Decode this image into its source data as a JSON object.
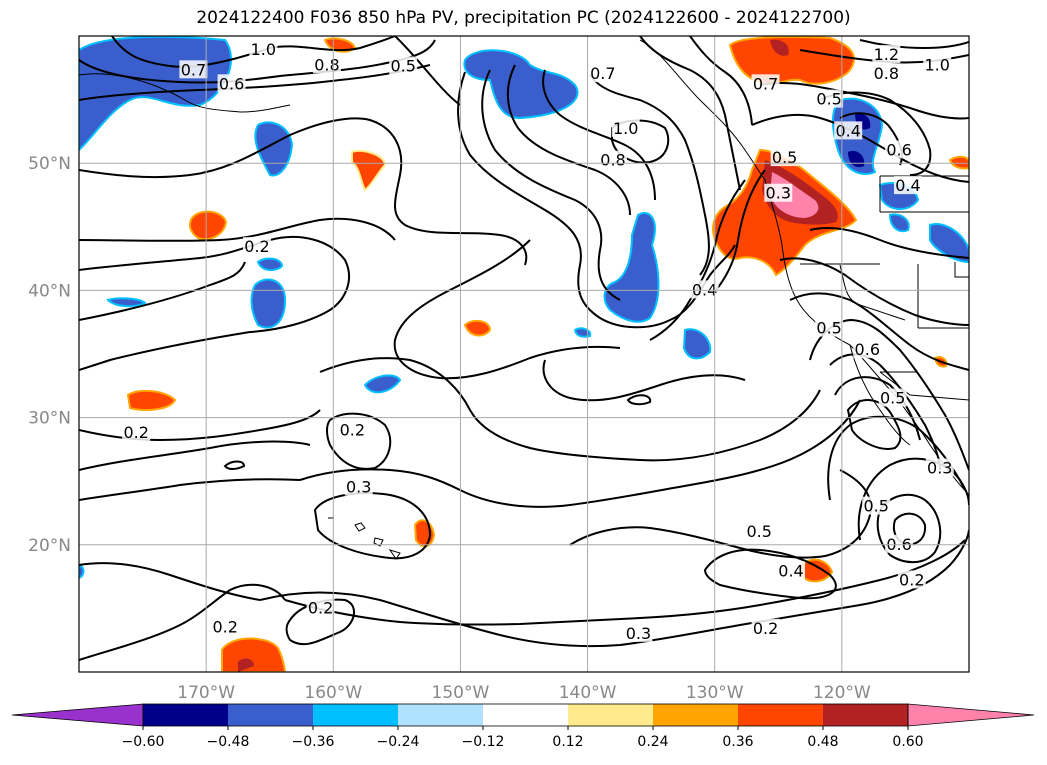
{
  "title": "2024122400 F036 850 hPa PV, precipitation PC (2024122600 - 2024122700)",
  "map": {
    "lon_range": [
      -180,
      -110
    ],
    "lat_range": [
      10,
      60
    ],
    "lon_ticks": [
      {
        "value": -170,
        "label": "170°W"
      },
      {
        "value": -160,
        "label": "160°W"
      },
      {
        "value": -150,
        "label": "150°W"
      },
      {
        "value": -140,
        "label": "140°W"
      },
      {
        "value": -130,
        "label": "130°W"
      },
      {
        "value": -120,
        "label": "120°W"
      }
    ],
    "lat_ticks": [
      {
        "value": 20,
        "label": "20°N"
      },
      {
        "value": 30,
        "label": "30°N"
      },
      {
        "value": 40,
        "label": "40°N"
      },
      {
        "value": 50,
        "label": "50°N"
      }
    ],
    "grid": true
  },
  "contour_labels": [
    {
      "text": "1.0",
      "lon": -165.5,
      "lat": 58.9
    },
    {
      "text": "0.8",
      "lon": -160.5,
      "lat": 57.7
    },
    {
      "text": "0.7",
      "lon": -171.0,
      "lat": 57.3
    },
    {
      "text": "0.6",
      "lon": -168.0,
      "lat": 56.2
    },
    {
      "text": "0.5",
      "lon": -154.5,
      "lat": 57.6
    },
    {
      "text": "0.2",
      "lon": -166.0,
      "lat": 43.4
    },
    {
      "text": "0.2",
      "lon": -175.5,
      "lat": 28.8
    },
    {
      "text": "0.2",
      "lon": -158.5,
      "lat": 29.0
    },
    {
      "text": "0.3",
      "lon": -158.0,
      "lat": 24.5
    },
    {
      "text": "0.2",
      "lon": -161.0,
      "lat": 15.0
    },
    {
      "text": "0.2",
      "lon": -168.5,
      "lat": 13.5
    },
    {
      "text": "0.7",
      "lon": -138.8,
      "lat": 57.0
    },
    {
      "text": "1.0",
      "lon": -137.0,
      "lat": 52.7
    },
    {
      "text": "0.8",
      "lon": -138.0,
      "lat": 50.2
    },
    {
      "text": "0.7",
      "lon": -126.0,
      "lat": 56.2
    },
    {
      "text": "1.2",
      "lon": -116.5,
      "lat": 58.5
    },
    {
      "text": "1.0",
      "lon": -112.5,
      "lat": 57.7
    },
    {
      "text": "0.8",
      "lon": -116.5,
      "lat": 57.0
    },
    {
      "text": "0.5",
      "lon": -121.0,
      "lat": 55.0
    },
    {
      "text": "0.4",
      "lon": -119.5,
      "lat": 52.5
    },
    {
      "text": "0.6",
      "lon": -115.5,
      "lat": 51.0
    },
    {
      "text": "0.4",
      "lon": -114.8,
      "lat": 48.2
    },
    {
      "text": "0.5",
      "lon": -124.5,
      "lat": 50.4
    },
    {
      "text": "0.3",
      "lon": -125.0,
      "lat": 47.6
    },
    {
      "text": "0.4",
      "lon": -130.8,
      "lat": 40.0
    },
    {
      "text": "0.5",
      "lon": -121.0,
      "lat": 37.0
    },
    {
      "text": "0.6",
      "lon": -118.0,
      "lat": 35.3
    },
    {
      "text": "0.5",
      "lon": -116.0,
      "lat": 31.5
    },
    {
      "text": "0.3",
      "lon": -112.3,
      "lat": 26.0
    },
    {
      "text": "0.5",
      "lon": -117.3,
      "lat": 23.0
    },
    {
      "text": "0.6",
      "lon": -115.5,
      "lat": 20.0
    },
    {
      "text": "0.5",
      "lon": -126.5,
      "lat": 21.0
    },
    {
      "text": "0.4",
      "lon": -124.0,
      "lat": 17.9
    },
    {
      "text": "0.2",
      "lon": -114.5,
      "lat": 17.2
    },
    {
      "text": "0.2",
      "lon": -126.0,
      "lat": 13.4
    },
    {
      "text": "0.3",
      "lon": -136.0,
      "lat": 13.0
    }
  ],
  "colorbar": {
    "colors": [
      "#9932cc",
      "#00008b",
      "#3a5fcd",
      "#00bfff",
      "#b0e2ff",
      "#ffffff",
      "#ffeb8b",
      "#ffa500",
      "#ff4500",
      "#b22222",
      "#ff82ab"
    ],
    "ticks": [
      "−0.60",
      "−0.48",
      "−0.36",
      "−0.24",
      "−0.12",
      "0.12",
      "0.24",
      "0.36",
      "0.48",
      "0.60"
    ]
  }
}
